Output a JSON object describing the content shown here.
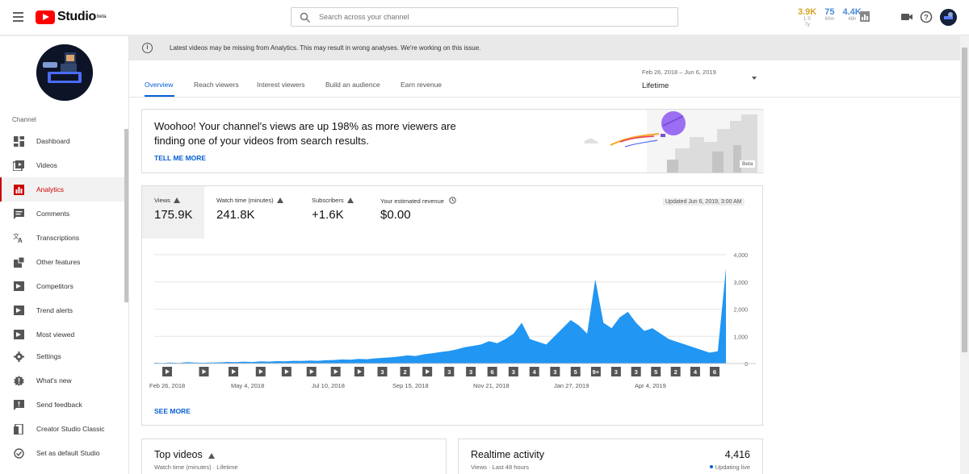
{
  "header": {
    "brand": "Studio",
    "brand_badge": "beta",
    "search_placeholder": "Search across your channel",
    "stats": [
      {
        "value": "3.9K",
        "label": "1 ©",
        "label2": "7y"
      },
      {
        "value": "75",
        "label": "60m"
      },
      {
        "value": "4.4K",
        "label": "48h"
      }
    ]
  },
  "notice": "Latest videos may be missing from Analytics. This may result in wrong analyses. We're working on this issue.",
  "tabs": [
    "Overview",
    "Reach viewers",
    "Interest viewers",
    "Build an audience",
    "Earn revenue"
  ],
  "date_range": {
    "range": "Feb 26, 2018 – Jun 6, 2019",
    "period": "Lifetime"
  },
  "sidebar": {
    "section": "Channel",
    "items": [
      {
        "label": "Dashboard",
        "icon": "dashboard-icon"
      },
      {
        "label": "Videos",
        "icon": "videos-icon"
      },
      {
        "label": "Analytics",
        "icon": "analytics-icon"
      },
      {
        "label": "Comments",
        "icon": "comments-icon"
      },
      {
        "label": "Transcriptions",
        "icon": "translate-icon"
      },
      {
        "label": "Other features",
        "icon": "other-features-icon"
      },
      {
        "label": "Competitors",
        "icon": "competitors-icon"
      },
      {
        "label": "Trend alerts",
        "icon": "trend-alerts-icon"
      },
      {
        "label": "Most viewed",
        "icon": "most-viewed-icon"
      },
      {
        "label": "Settings",
        "icon": "gear-icon"
      },
      {
        "label": "What's new",
        "icon": "whats-new-icon"
      },
      {
        "label": "Send feedback",
        "icon": "feedback-icon"
      },
      {
        "label": "Creator Studio Classic",
        "icon": "classic-icon"
      },
      {
        "label": "Set as default Studio",
        "icon": "check-circle-icon"
      }
    ]
  },
  "insight": {
    "headline": "Woohoo! Your channel's views are up 198% as more viewers are finding one of your videos from search results.",
    "link": "TELL ME MORE",
    "badge": "Beta"
  },
  "metrics": [
    {
      "name": "Views",
      "value": "175.9K",
      "warning": true
    },
    {
      "name": "Watch time (minutes)",
      "value": "241.8K",
      "warning": true
    },
    {
      "name": "Subscribers",
      "value": "+1.6K",
      "warning": true
    },
    {
      "name": "Your estimated revenue",
      "value": "$0.00",
      "warning": false
    }
  ],
  "updated": "Updated Jun 6, 2019, 3:00 AM",
  "see_more": "SEE MORE",
  "chart_data": {
    "type": "area",
    "x_ticks": [
      "Feb 26, 2018",
      "May 4, 2018",
      "Jul 10, 2018",
      "Sep 15, 2018",
      "Nov 21, 2018",
      "Jan 27, 2019",
      "Apr 4, 2019"
    ],
    "y_ticks": [
      "4,000",
      "3,000",
      "2,000",
      "1,000",
      "0"
    ],
    "ylim": [
      0,
      4000
    ],
    "color": "#2196f3",
    "series": [
      {
        "values": [
          30,
          20,
          40,
          25,
          50,
          35,
          30,
          40,
          45,
          60,
          50,
          70,
          55,
          80,
          70,
          90,
          80,
          100,
          95,
          110,
          100,
          120,
          130,
          150,
          140,
          170,
          160,
          190,
          210,
          230,
          260,
          300,
          280,
          340,
          380,
          420,
          460,
          520,
          600,
          650,
          700,
          820,
          750,
          900,
          1100,
          1500,
          900,
          800,
          700,
          1000,
          1300,
          1600,
          1400,
          1100,
          3100,
          1500,
          1300,
          1700,
          1900,
          1500,
          1200,
          1300,
          1100,
          900,
          800,
          700,
          600,
          500,
          400,
          450,
          3500
        ]
      }
    ],
    "markers": [
      "▶",
      "▶",
      "▶",
      "▶",
      "▶",
      "▶",
      "▶",
      "▶",
      "3",
      "2",
      "▶",
      "3",
      "3",
      "6",
      "3",
      "4",
      "3",
      "5",
      "9+",
      "3",
      "3",
      "5",
      "2",
      "4",
      "6"
    ]
  },
  "bottom": {
    "top_videos": {
      "title": "Top videos",
      "sub": "Watch time (minutes) · Lifetime"
    },
    "realtime": {
      "title": "Realtime activity",
      "sub": "Views · Last 48 hours",
      "value": "4,416",
      "live": "Updating live"
    }
  }
}
